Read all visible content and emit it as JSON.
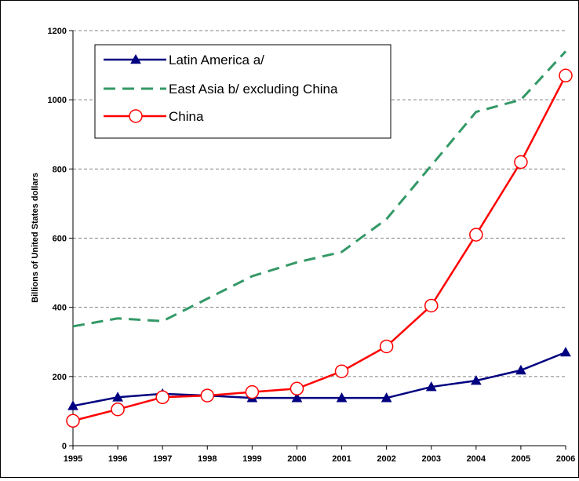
{
  "chart_data": {
    "type": "line",
    "title": "",
    "xlabel": "",
    "ylabel": "Billions of United States dollars",
    "x": [
      1995,
      1996,
      1997,
      1998,
      1999,
      2000,
      2001,
      2002,
      2003,
      2004,
      2005,
      2006
    ],
    "x_tick_labels": [
      "1995",
      "1996",
      "1997",
      "1998",
      "1999",
      "2000",
      "2001",
      "2002",
      "2003",
      "2004",
      "2005",
      "2006"
    ],
    "y_ticks": [
      0,
      200,
      400,
      600,
      800,
      1000,
      1200
    ],
    "y_tick_labels": [
      "0",
      "200",
      "400",
      "600",
      "800",
      "1000",
      "1200"
    ],
    "ylim": [
      0,
      1200
    ],
    "grid": "horizontal dashed",
    "legend_position": "top-left",
    "series": [
      {
        "name": "Latin America a/",
        "color": "#000080",
        "style": "solid",
        "marker": "triangle",
        "values": [
          115,
          140,
          150,
          145,
          138,
          138,
          138,
          138,
          170,
          188,
          218,
          270
        ]
      },
      {
        "name": "East Asia b/ excluding China",
        "color": "#339966",
        "style": "dashed",
        "marker": "none",
        "values": [
          345,
          368,
          360,
          425,
          490,
          530,
          560,
          655,
          810,
          965,
          1000,
          1140
        ]
      },
      {
        "name": "China",
        "color": "#ff0000",
        "style": "solid",
        "marker": "open-circle",
        "values": [
          72,
          105,
          140,
          145,
          155,
          165,
          215,
          287,
          405,
          610,
          820,
          1070
        ]
      }
    ]
  }
}
